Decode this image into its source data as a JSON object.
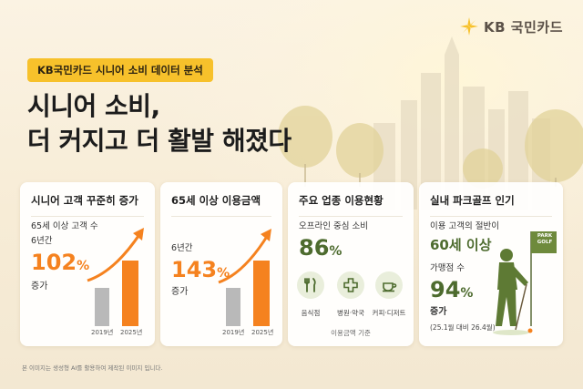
{
  "brand": {
    "logo_text": "KB 국민카드",
    "logo_icon": "kb-star-icon",
    "accent": "#f7c12b"
  },
  "tag": "KB국민카드 시니어 소비 데이터 분석",
  "headline": {
    "line1": "시니어 소비,",
    "line2": "더 커지고 더 활발 해졌다"
  },
  "card1": {
    "title": "시니어 고객 꾸준히 증가",
    "sub1": "65세 이상 고객 수",
    "sub2": "6년간",
    "value": "102",
    "unit": "%",
    "suffix": "증가",
    "bars": [
      {
        "label": "2019년"
      },
      {
        "label": "2025년"
      }
    ]
  },
  "card2": {
    "title": "65세 이상 이용금액",
    "sub": "6년간",
    "value": "143",
    "unit": "%",
    "suffix": "증가",
    "bars": [
      {
        "label": "2019년"
      },
      {
        "label": "2025년"
      }
    ]
  },
  "card3": {
    "title": "주요 업종 이용현황",
    "sub": "오프라인 중심 소비",
    "value": "86",
    "unit": "%",
    "categories": [
      {
        "label": "음식점",
        "icon": "fork-knife-icon"
      },
      {
        "label": "병원·약국",
        "icon": "medical-cross-icon"
      },
      {
        "label": "커피·디저트",
        "icon": "coffee-cup-icon"
      }
    ],
    "note": "이용금액 기준"
  },
  "card4": {
    "title": "실내 파크골프 인기",
    "sub1": "이용 고객의 절반이",
    "highlight": "60세 이상",
    "sub2": "가맹점 수",
    "value": "94",
    "unit": "%",
    "suffix": "증가",
    "note": "(25.1월 대비 26.4월)",
    "flag_line1": "PARK",
    "flag_line2": "GOLF"
  },
  "footnote": "본 이미지는 생성형 AI를 활용하여 제작된 이미지 입니다.",
  "colors": {
    "orange": "#f5821f",
    "gray_bar": "#b9b9b9",
    "green": "#4d6b2e",
    "yellow": "#f7c12b"
  }
}
